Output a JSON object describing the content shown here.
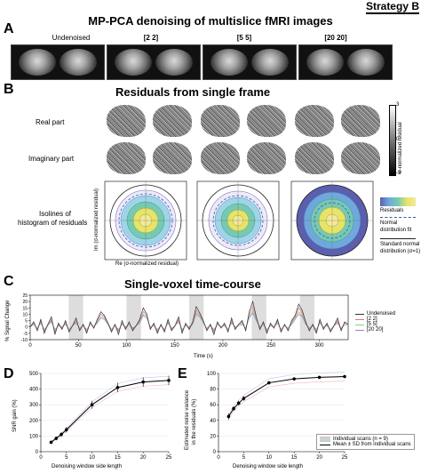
{
  "header": {
    "strategy": "Strategy B"
  },
  "panelA": {
    "label": "A",
    "title": "MP-PCA denoising of multislice fMRI images",
    "columns": [
      "Undenoised",
      "[2 2]",
      "[5 5]",
      "[20 20]"
    ]
  },
  "panelB": {
    "label": "B",
    "title": "Residuals from single frame",
    "row_real": "Real part",
    "row_imag": "Imaginary part",
    "row_iso_1": "Isolines of",
    "row_iso_2": "histogram of residuals",
    "colorbar_label": "σ-normalized residual",
    "colorbar_ticks": [
      "3",
      "0",
      "-3"
    ],
    "xlabel": "Re (σ-normalized residual)",
    "ylabel": "Im (σ-normalized residual)",
    "ticks": [
      "-2",
      "-1.5",
      "-1",
      "-0.5",
      "0",
      "0.5",
      "1",
      "1.5",
      "2"
    ],
    "legend": {
      "residuals": "Residuals",
      "normal_fit_1": "Normal",
      "normal_fit_2": "distribution fit",
      "standard_1": "Standard normal",
      "standard_2": "distribution (σ=1)"
    }
  },
  "panelC": {
    "label": "C",
    "title": "Single-voxel time-course",
    "ylabel": "% Signal Change",
    "xlabel": "Time (s)",
    "legend": [
      "Undenoised",
      "[2 2]",
      "[5 5]",
      "[20 20]"
    ],
    "colors": [
      "#333333",
      "#e8737a",
      "#7fd08a",
      "#9b7fd0"
    ]
  },
  "panelD": {
    "label": "D",
    "ylabel": "SNR gain (%)",
    "xlabel": "Denoising window side length"
  },
  "panelE": {
    "label": "E",
    "ylabel_1": "Estimated noise variance",
    "ylabel_2": "in the residuals (%)",
    "xlabel": "Denoising window side length",
    "legend_individual": "Individual scans (n = 9)",
    "legend_mean": "Mean ± SD from individual scans"
  },
  "chart_data": [
    {
      "type": "line",
      "panel": "C",
      "title": "Single-voxel time-course",
      "xlabel": "Time (s)",
      "ylabel": "% Signal Change",
      "xlim": [
        0,
        330
      ],
      "ylim": [
        -10,
        25
      ],
      "xticks": [
        0,
        50,
        100,
        150,
        200,
        250,
        300
      ],
      "yticks": [
        -10,
        -5,
        0,
        5,
        10,
        15,
        20,
        25
      ],
      "stimulus_blocks": [
        [
          40,
          55
        ],
        [
          100,
          115
        ],
        [
          165,
          180
        ],
        [
          230,
          245
        ],
        [
          280,
          295
        ]
      ],
      "series": [
        {
          "name": "Undenoised",
          "values": [
            0,
            4,
            -3,
            6,
            -5,
            2,
            8,
            -6,
            3,
            -2,
            5,
            -4,
            1,
            7,
            -3,
            2,
            -5,
            4,
            -1,
            6,
            12,
            9,
            3,
            -4,
            2,
            -6,
            5,
            -2,
            4,
            -3,
            1,
            6,
            15,
            10,
            -2,
            3,
            -5,
            2,
            -4,
            6,
            -3,
            1,
            8,
            -5,
            3,
            -2,
            4,
            16,
            11,
            5,
            -3,
            2,
            -6,
            4,
            -1,
            3,
            -4,
            7,
            -2,
            2,
            5,
            -3,
            12,
            20,
            8,
            -2,
            4,
            -5,
            3,
            -1,
            6,
            -4,
            2,
            -3,
            5,
            9,
            18,
            13,
            4,
            -3,
            2,
            -5,
            6,
            -2,
            3,
            -4,
            1,
            7,
            -3,
            4,
            2
          ]
        },
        {
          "name": "[2 2]",
          "values": [
            0,
            3,
            -2,
            5,
            -4,
            2,
            6,
            -4,
            2,
            -1,
            4,
            -3,
            1,
            5,
            -2,
            2,
            -4,
            3,
            0,
            5,
            10,
            8,
            3,
            -3,
            2,
            -4,
            4,
            -1,
            3,
            -2,
            1,
            5,
            12,
            9,
            -1,
            2,
            -4,
            2,
            -3,
            5,
            -2,
            1,
            6,
            -4,
            2,
            -1,
            3,
            13,
            10,
            4,
            -2,
            2,
            -4,
            3,
            0,
            2,
            -3,
            5,
            -1,
            2,
            4,
            -2,
            10,
            16,
            7,
            -1,
            3,
            -4,
            2,
            0,
            5,
            -3,
            2,
            -2,
            4,
            8,
            15,
            11,
            3,
            -2,
            2,
            -4,
            5,
            -1,
            2,
            -3,
            1,
            5,
            -2,
            3,
            2
          ]
        },
        {
          "name": "[5 5]",
          "values": [
            0,
            2,
            -1,
            4,
            -3,
            1,
            5,
            -3,
            2,
            -1,
            3,
            -2,
            1,
            4,
            -2,
            1,
            -3,
            2,
            0,
            4,
            8,
            7,
            3,
            -2,
            1,
            -3,
            3,
            -1,
            2,
            -2,
            1,
            4,
            10,
            8,
            -1,
            2,
            -3,
            1,
            -2,
            4,
            -2,
            1,
            5,
            -3,
            2,
            -1,
            2,
            11,
            9,
            3,
            -2,
            1,
            -3,
            2,
            0,
            2,
            -2,
            4,
            -1,
            1,
            3,
            -2,
            8,
            13,
            6,
            -1,
            2,
            -3,
            2,
            0,
            4,
            -2,
            1,
            -1,
            3,
            7,
            12,
            9,
            3,
            -2,
            1,
            -3,
            4,
            -1,
            2,
            -2,
            1,
            4,
            -2,
            2,
            1
          ]
        },
        {
          "name": "[20 20]",
          "values": [
            0,
            2,
            -1,
            3,
            -2,
            1,
            4,
            -2,
            1,
            0,
            2,
            -2,
            1,
            3,
            -1,
            1,
            -2,
            2,
            0,
            3,
            7,
            6,
            2,
            -2,
            1,
            -2,
            2,
            0,
            2,
            -1,
            1,
            3,
            9,
            7,
            0,
            1,
            -2,
            1,
            -2,
            3,
            -1,
            1,
            4,
            -2,
            1,
            0,
            2,
            10,
            8,
            3,
            -1,
            1,
            -2,
            2,
            0,
            1,
            -2,
            3,
            0,
            1,
            2,
            -1,
            7,
            11,
            5,
            0,
            2,
            -2,
            1,
            0,
            3,
            -2,
            1,
            -1,
            2,
            6,
            10,
            8,
            2,
            -1,
            1,
            -2,
            3,
            0,
            1,
            -2,
            1,
            3,
            -1,
            2,
            1
          ]
        }
      ]
    },
    {
      "type": "line",
      "panel": "D",
      "xlabel": "Denoising window side length",
      "ylabel": "SNR gain (%)",
      "xlim": [
        0,
        25
      ],
      "ylim": [
        0,
        500
      ],
      "xticks": [
        0,
        5,
        10,
        15,
        20,
        25
      ],
      "yticks": [
        0,
        100,
        200,
        300,
        400,
        500
      ],
      "x": [
        2,
        3,
        4,
        5,
        10,
        15,
        20,
        25
      ],
      "series": [
        {
          "name": "Mean",
          "values": [
            60,
            85,
            110,
            140,
            300,
            410,
            445,
            455
          ],
          "sd": [
            10,
            12,
            15,
            18,
            25,
            30,
            30,
            30
          ]
        }
      ]
    },
    {
      "type": "line",
      "panel": "E",
      "xlabel": "Denoising window side length",
      "ylabel": "Estimated noise variance in the residuals (%)",
      "xlim": [
        0,
        25
      ],
      "ylim": [
        0,
        100
      ],
      "xticks": [
        0,
        5,
        10,
        15,
        20,
        25
      ],
      "yticks": [
        0,
        20,
        40,
        60,
        80,
        100
      ],
      "x": [
        2,
        3,
        4,
        5,
        10,
        15,
        20,
        25
      ],
      "series": [
        {
          "name": "Mean ± SD from individual scans",
          "values": [
            45,
            55,
            62,
            68,
            88,
            93,
            95,
            96
          ],
          "sd": [
            4,
            3,
            3,
            3,
            2,
            1,
            1,
            1
          ]
        }
      ]
    }
  ]
}
